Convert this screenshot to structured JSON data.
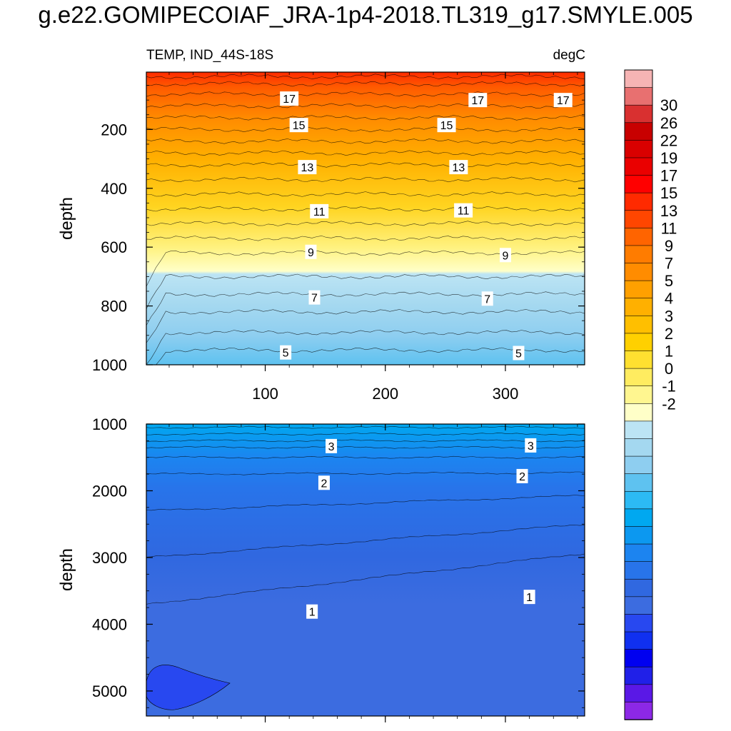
{
  "title": "g.e22.GOMIPECOIAF_JRA-1p4-2018.TL319_g17.SMYLE.005",
  "chart_data": [
    {
      "type": "heatmap",
      "subtitle_left": "TEMP, IND_44S-18S",
      "subtitle_right": "degC",
      "xlabel": "",
      "ylabel": "depth",
      "xlim": [
        1,
        366
      ],
      "ylim": [
        1000,
        5
      ],
      "xticks": [
        100,
        200,
        300
      ],
      "yticks": [
        200,
        400,
        600,
        800,
        1000
      ],
      "contour_labels": [
        {
          "value": "17",
          "x": 120,
          "y": 95
        },
        {
          "value": "17",
          "x": 277,
          "y": 100
        },
        {
          "value": "17",
          "x": 348,
          "y": 100
        },
        {
          "value": "15",
          "x": 128,
          "y": 185
        },
        {
          "value": "15",
          "x": 251,
          "y": 185
        },
        {
          "value": "13",
          "x": 135,
          "y": 328
        },
        {
          "value": "13",
          "x": 261,
          "y": 328
        },
        {
          "value": "11",
          "x": 145,
          "y": 478
        },
        {
          "value": "11",
          "x": 265,
          "y": 475
        },
        {
          "value": "9",
          "x": 138,
          "y": 616
        },
        {
          "value": "9",
          "x": 300,
          "y": 627
        },
        {
          "value": "7",
          "x": 141,
          "y": 771
        },
        {
          "value": "7",
          "x": 285,
          "y": 775
        },
        {
          "value": "5",
          "x": 117,
          "y": 958
        },
        {
          "value": "5",
          "x": 311,
          "y": 960
        }
      ]
    },
    {
      "type": "heatmap",
      "xlabel": "",
      "ylabel": "depth",
      "xlim": [
        1,
        366
      ],
      "ylim": [
        5375,
        1000
      ],
      "yticks": [
        1000,
        2000,
        3000,
        4000,
        5000
      ],
      "contour_labels": [
        {
          "value": "3",
          "x": 155,
          "y": 1330
        },
        {
          "value": "3",
          "x": 321,
          "y": 1320
        },
        {
          "value": "2",
          "x": 149,
          "y": 1880
        },
        {
          "value": "2",
          "x": 314,
          "y": 1780
        },
        {
          "value": "1",
          "x": 139,
          "y": 3810
        },
        {
          "value": "1",
          "x": 320,
          "y": 3590
        }
      ]
    }
  ],
  "colorbar": {
    "labels": [
      "30",
      "26",
      "22",
      "19",
      "17",
      "15",
      "13",
      "11",
      "9",
      "7",
      "5",
      "4",
      "3",
      "2",
      "1",
      "0",
      "-1",
      "-2"
    ],
    "colors": [
      "#f6b4b4",
      "#e87070",
      "#d93030",
      "#c80000",
      "#d90000",
      "#ea0000",
      "#ff0000",
      "#ff2a00",
      "#ff4600",
      "#ff6400",
      "#ff7c00",
      "#ff8c00",
      "#ffa000",
      "#ffb000",
      "#ffbf00",
      "#ffd000",
      "#ffe030",
      "#ffec60",
      "#fff690",
      "#ffffc8",
      "#bce4f4",
      "#a4d8f0",
      "#8ecef0",
      "#5ec2f0",
      "#2cbaf4",
      "#00a8f0",
      "#0c98f0",
      "#1c84f0",
      "#2874ea",
      "#3068e0",
      "#3c6ce0",
      "#2848f0",
      "#1030f0",
      "#0000f0",
      "#2020e8",
      "#5a18e6",
      "#8c28e6"
    ]
  }
}
